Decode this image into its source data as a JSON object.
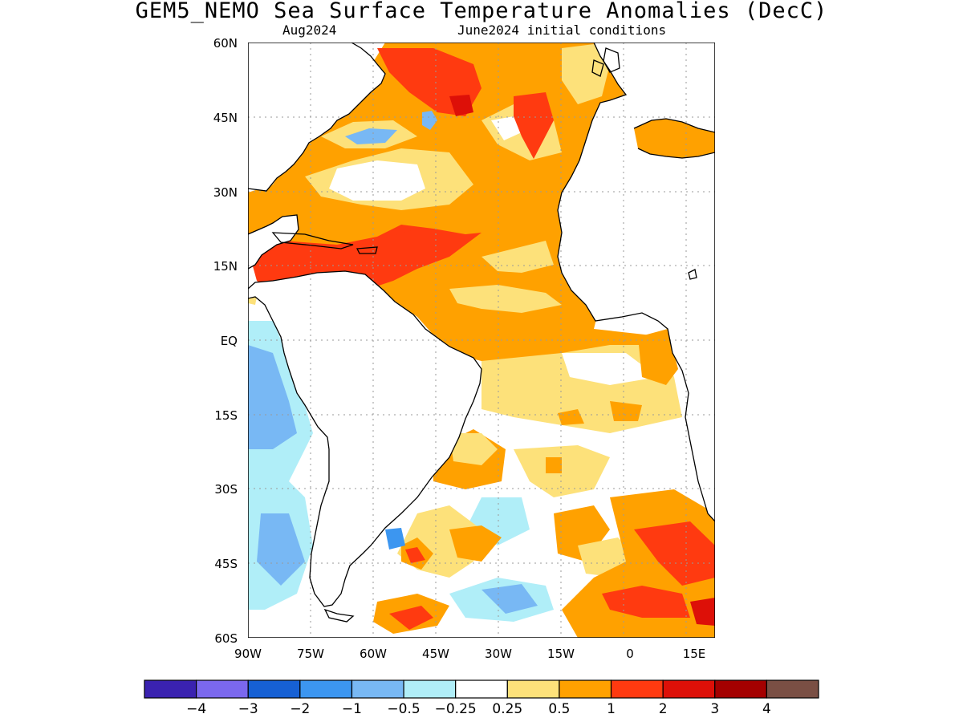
{
  "title": "GEM5_NEMO Sea Surface Temperature Anomalies (DecC)",
  "subtitle_left": "Aug2024",
  "subtitle_right": "June2024 initial conditions",
  "axes": {
    "lat_labels": [
      "60N",
      "45N",
      "30N",
      "15N",
      "EQ",
      "15S",
      "30S",
      "45S",
      "60S"
    ],
    "lon_labels": [
      "90W",
      "75W",
      "60W",
      "45W",
      "30W",
      "15W",
      "0",
      "15E"
    ]
  },
  "colorbar": {
    "colors": [
      "#3a22b0",
      "#7b68ee",
      "#1660d4",
      "#3c96f0",
      "#78b8f4",
      "#b0eef8",
      "#ffffff",
      "#fde17a",
      "#ffa100",
      "#ff3a10",
      "#dd1008",
      "#a40000",
      "#7a4f44"
    ],
    "labels": [
      "−4",
      "−3",
      "−2",
      "−1",
      "−0.5",
      "−0.25",
      "0.25",
      "0.5",
      "1",
      "2",
      "3",
      "4"
    ]
  },
  "land_color": "#ffffff"
}
